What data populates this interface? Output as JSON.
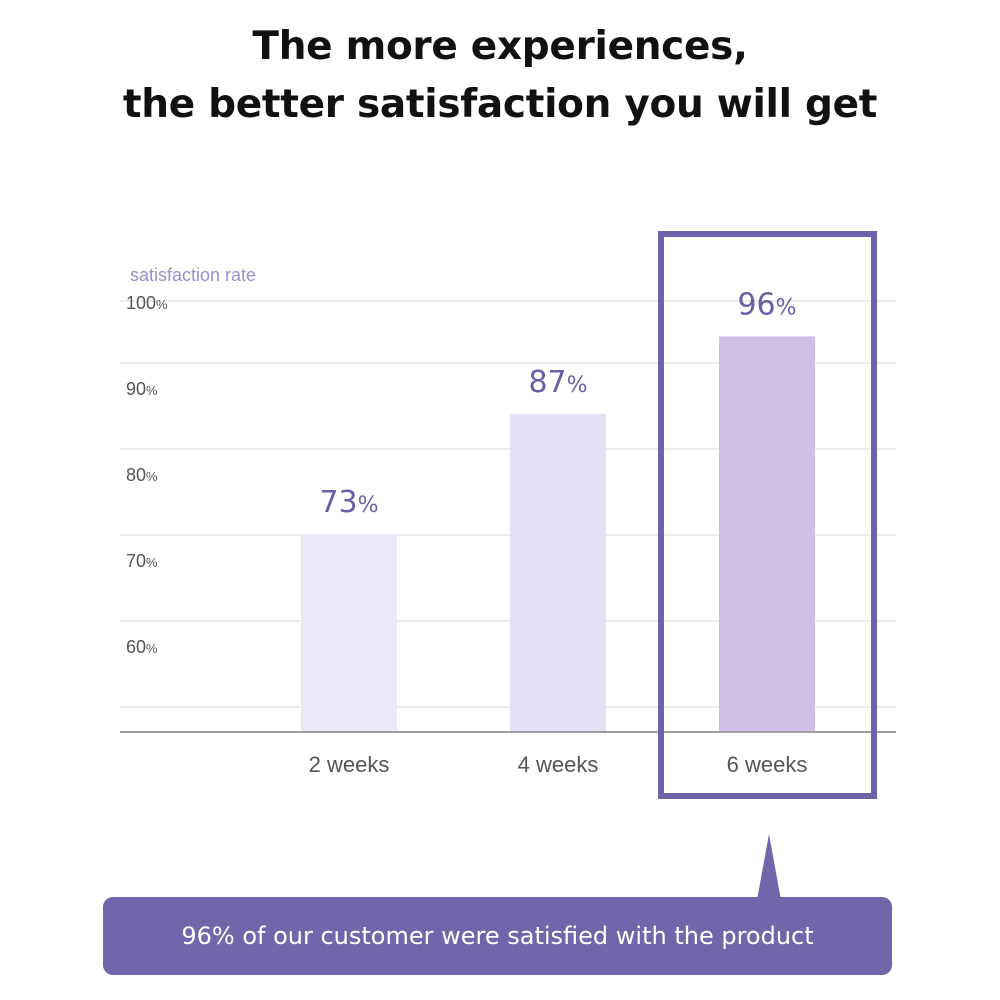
{
  "headline": {
    "line1": "The more experiences,",
    "line2": "the better satisfaction you will get"
  },
  "chart_data": {
    "type": "bar",
    "ylabel": "satisfaction rate",
    "categories": [
      "2 weeks",
      "4 weeks",
      "6 weeks"
    ],
    "values": [
      73,
      87,
      96
    ],
    "value_labels": [
      "73%",
      "87%",
      "96%"
    ],
    "yticks": [
      {
        "value": 100,
        "label": "100%"
      },
      {
        "value": 90,
        "label": "90%"
      },
      {
        "value": 80,
        "label": "80%"
      },
      {
        "value": 70,
        "label": "70%"
      },
      {
        "value": 60,
        "label": "60%"
      }
    ],
    "ylim": [
      50,
      103
    ],
    "grid": true,
    "highlighted_category": "6 weeks",
    "colors": {
      "bar": "#ece8f7",
      "bar_mid": "#e6e0f6",
      "bar_highlight": "#cdbfe6",
      "value_label": "#6a5fa5",
      "highlight_frame": "#6e62a8",
      "axis_text": "#555555",
      "ylabel_text": "#9a8fc7",
      "grid": "#e6e6e6",
      "baseline": "#9e9e9e"
    }
  },
  "callout": {
    "text": "96% of our customer were satisfied with the product",
    "color": "#7166a9"
  }
}
